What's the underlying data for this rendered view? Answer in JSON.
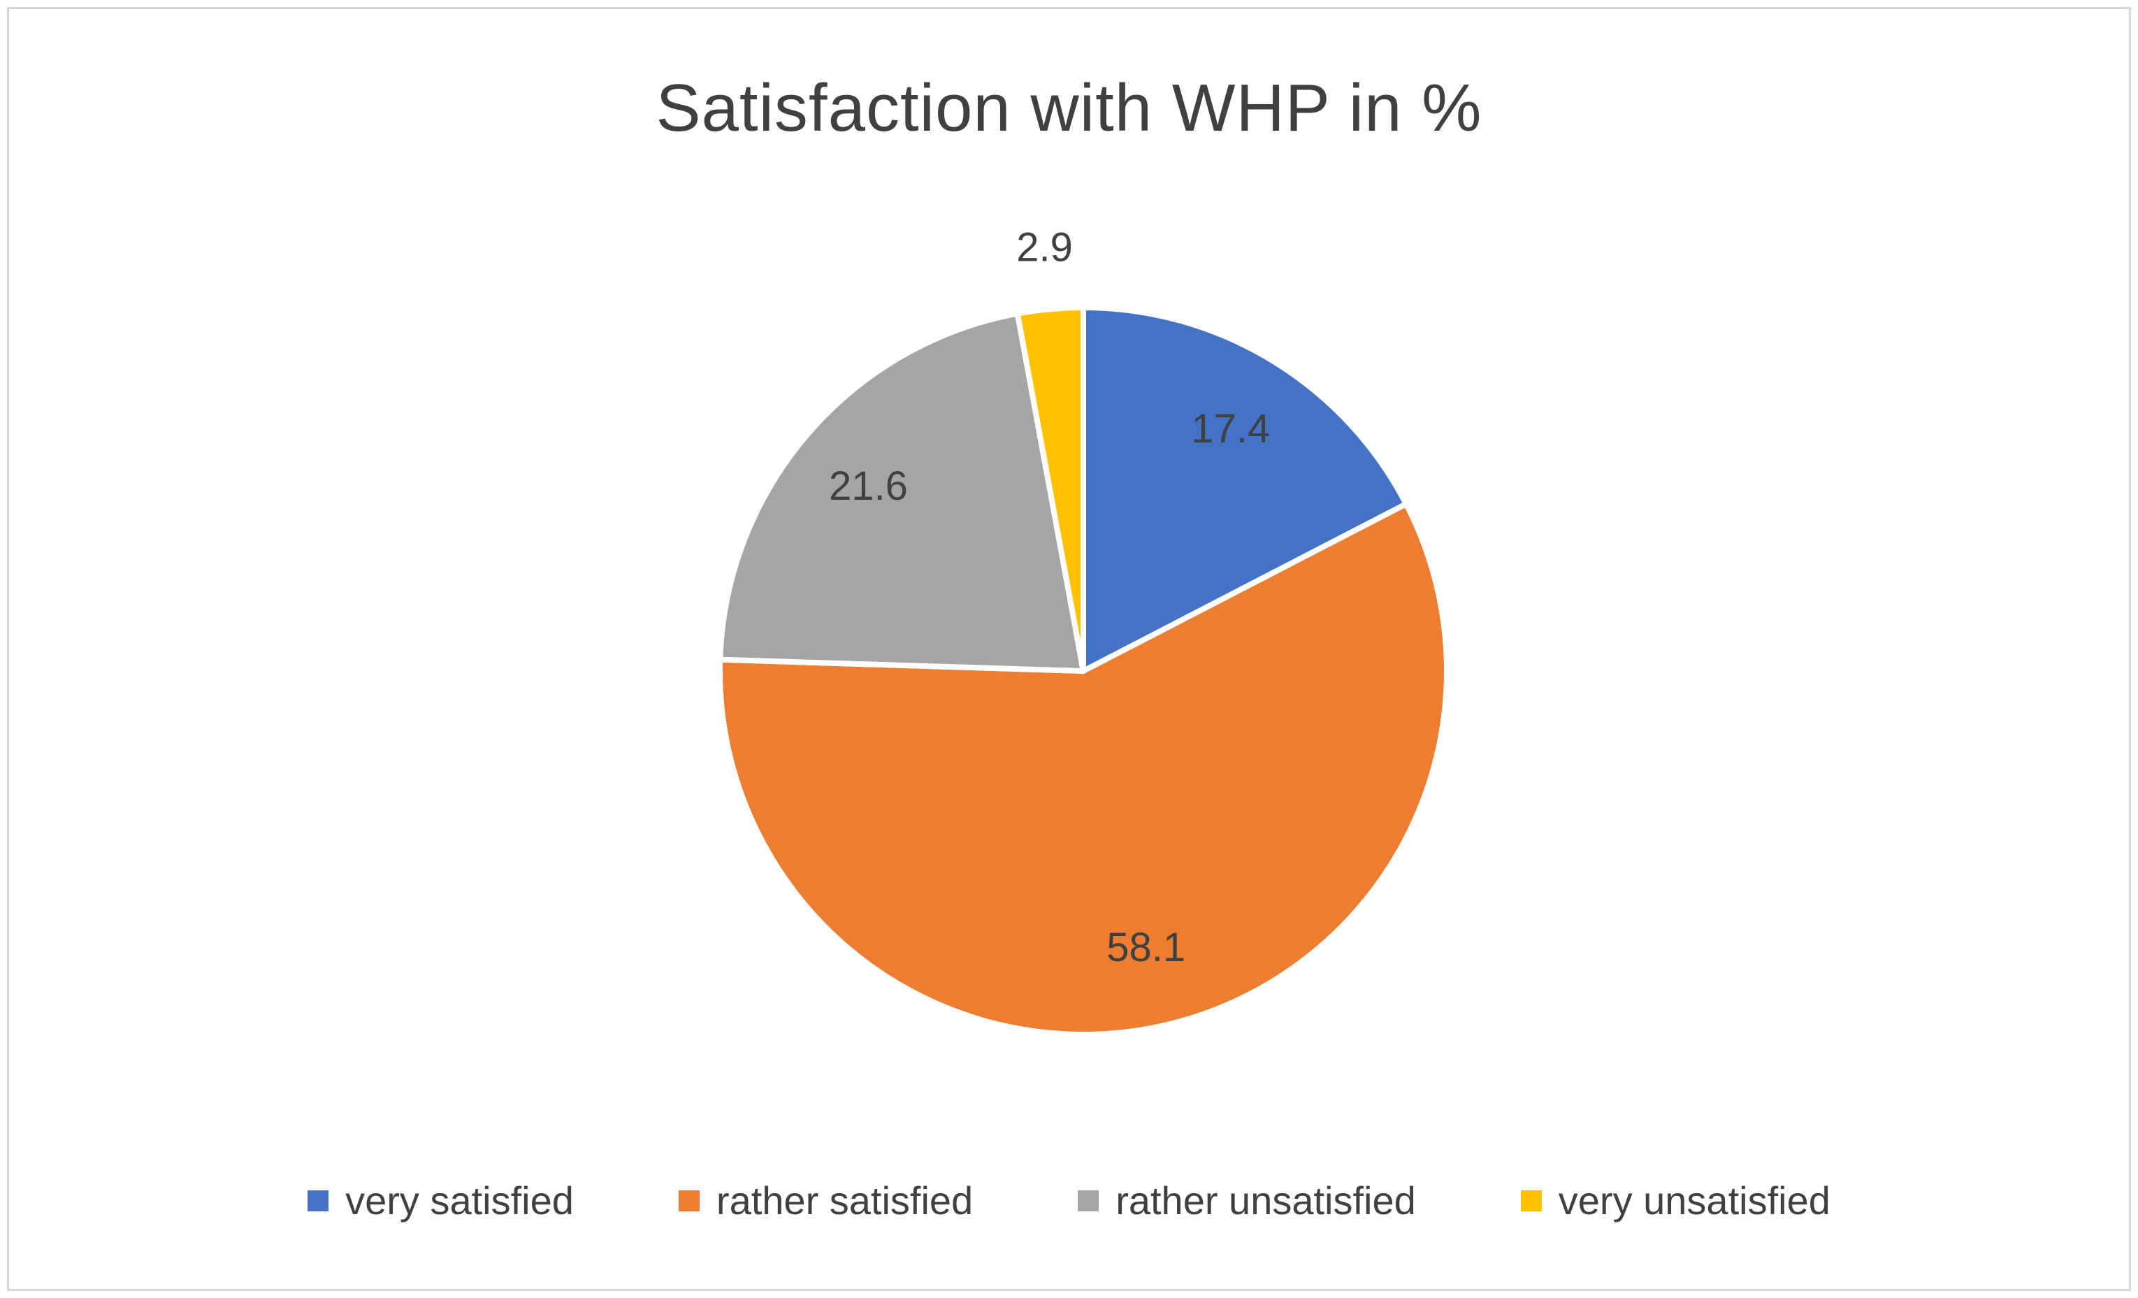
{
  "figure": {
    "background": "#ffffff",
    "border_color": "#d6d6d6"
  },
  "chart_data": {
    "type": "pie",
    "title": "Satisfaction with WHP in %",
    "categories": [
      "very satisfied",
      "rather satisfied",
      "rather unsatisfied",
      "very unsatisfied"
    ],
    "values": [
      17.4,
      58.1,
      21.6,
      2.9
    ],
    "labels": [
      "17.4",
      "58.1",
      "21.6",
      "2.9"
    ],
    "colors": [
      "#4472C4",
      "#ED7D31",
      "#A5A5A5",
      "#FFC000"
    ],
    "start_angle_deg": 0,
    "direction": "clockwise",
    "legend_position": "bottom",
    "data_label_color": "#404040",
    "slice_border_color": "#ffffff",
    "grid": false
  }
}
